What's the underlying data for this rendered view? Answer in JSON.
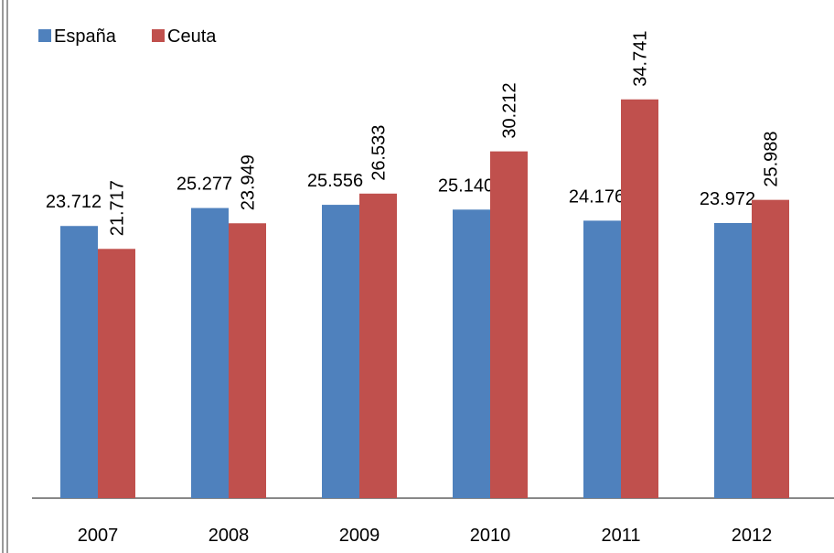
{
  "chart_data": {
    "type": "bar",
    "categories": [
      "2007",
      "2008",
      "2009",
      "2010",
      "2011",
      "2012"
    ],
    "series": [
      {
        "name": "España",
        "color": "#4f81bd",
        "values": [
          23.712,
          25.277,
          25.556,
          25.14,
          24.176,
          23.972
        ]
      },
      {
        "name": "Ceuta",
        "color": "#c0504d",
        "values": [
          21.717,
          23.949,
          26.533,
          30.212,
          34.741,
          25.988
        ]
      }
    ],
    "value_labels": [
      [
        "23.712",
        "25.277",
        "25.556",
        "25.140",
        "24.176",
        "23.972"
      ],
      [
        "21.717",
        "23.949",
        "26.533",
        "30.212",
        "34.741",
        "25.988"
      ]
    ],
    "ylim": [
      0,
      43.4
    ],
    "legend": "top-left"
  }
}
